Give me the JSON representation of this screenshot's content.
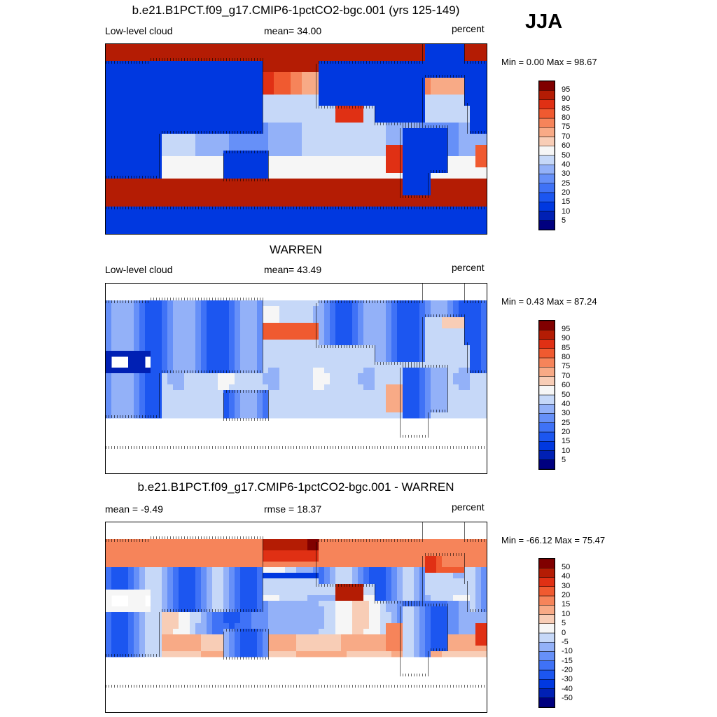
{
  "season": "JJA",
  "panels": [
    {
      "title": "b.e21.B1PCT.f09_g17.CMIP6-1pctCO2-bgc.001 (yrs 125-149)",
      "left_label": "Low-level cloud",
      "center_label": "mean=  34.00",
      "right_label": "percent",
      "minmax": "Min =   0.00 Max =  98.67",
      "field": "model",
      "colorbar": {
        "labels": [
          "95",
          "90",
          "85",
          "80",
          "75",
          "70",
          "60",
          "50",
          "40",
          "30",
          "25",
          "20",
          "15",
          "10",
          "5"
        ]
      }
    },
    {
      "title": "WARREN",
      "left_label": "Low-level cloud",
      "center_label": "mean=  43.49",
      "right_label": "percent",
      "minmax": "Min =   0.43 Max =  87.24",
      "field": "obs",
      "colorbar": {
        "labels": [
          "95",
          "90",
          "85",
          "80",
          "75",
          "70",
          "60",
          "50",
          "40",
          "30",
          "25",
          "20",
          "15",
          "10",
          "5"
        ]
      }
    },
    {
      "title": "b.e21.B1PCT.f09_g17.CMIP6-1pctCO2-bgc.001 - WARREN",
      "left_label": "mean =  -9.49",
      "center_label": "rmse =  18.37",
      "right_label": "percent",
      "minmax": "Min = -66.12 Max =  75.47",
      "field": "diff",
      "colorbar": {
        "labels": [
          "50",
          "40",
          "30",
          "20",
          "15",
          "10",
          "5",
          "0",
          "-5",
          "-10",
          "-15",
          "-20",
          "-30",
          "-40",
          "-50"
        ]
      }
    }
  ],
  "palette": [
    "#00007f",
    "#0020b4",
    "#0038e0",
    "#1c56f0",
    "#3f72f6",
    "#6690f8",
    "#93b1f8",
    "#c6d8f8",
    "#f6f6f6",
    "#f8cdb6",
    "#f8aa86",
    "#f6845a",
    "#f05a30",
    "#e03014",
    "#b41c04",
    "#800000"
  ],
  "colors": {
    "missing": "#ffffff",
    "coast": "#000000"
  }
}
